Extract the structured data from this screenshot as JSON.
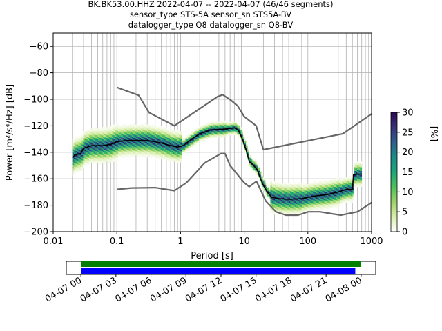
{
  "chart_data": [
    {
      "type": "heatmap",
      "title": [
        "BK.BK53.00.HHZ   2022-04-07 -- 2022-04-07  (46/46 segments)",
        "sensor_type STS-5A sensor_sn STS5A-BV",
        "datalogger_type Q8 datalogger_sn Q8-BV"
      ],
      "xlabel": "Period [s]",
      "ylabel": "Power [m²/s⁴/Hz] [dB]",
      "xscale": "log",
      "xlim": [
        0.01,
        1000
      ],
      "ylim": [
        -200,
        -50
      ],
      "grid": true,
      "x_ticks": [
        {
          "v": 0.01,
          "label": "0.01"
        },
        {
          "v": 0.1,
          "label": "0.1"
        },
        {
          "v": 1,
          "label": "1"
        },
        {
          "v": 10,
          "label": "10"
        },
        {
          "v": 100,
          "label": "100"
        },
        {
          "v": 1000,
          "label": "1000"
        }
      ],
      "y_ticks": [
        {
          "v": -60,
          "label": "−60"
        },
        {
          "v": -80,
          "label": "−80"
        },
        {
          "v": -100,
          "label": "−100"
        },
        {
          "v": -120,
          "label": "−120"
        },
        {
          "v": -140,
          "label": "−140"
        },
        {
          "v": -160,
          "label": "−160"
        },
        {
          "v": -180,
          "label": "−180"
        },
        {
          "v": -200,
          "label": "−200"
        }
      ],
      "colorbar": {
        "label": "[%]",
        "range": [
          0,
          30
        ],
        "ticks": [
          {
            "v": 0,
            "label": "0"
          },
          {
            "v": 5,
            "label": "5"
          },
          {
            "v": 10,
            "label": "10"
          },
          {
            "v": 15,
            "label": "15"
          },
          {
            "v": 20,
            "label": "20"
          },
          {
            "v": 25,
            "label": "25"
          },
          {
            "v": 30,
            "label": "30"
          }
        ],
        "colors": [
          "#ffffff",
          "#d8eeaa",
          "#9ed267",
          "#4cc35a",
          "#1ba77a",
          "#1c8b8a",
          "#2f5f8e",
          "#38327a",
          "#2a0b4f"
        ]
      },
      "series": [
        {
          "role": "median",
          "color": "#000000",
          "points": [
            [
              0.02,
              -144
            ],
            [
              0.022,
              -142
            ],
            [
              0.027,
              -141
            ],
            [
              0.03,
              -137
            ],
            [
              0.04,
              -135
            ],
            [
              0.06,
              -135
            ],
            [
              0.08,
              -134
            ],
            [
              0.1,
              -132
            ],
            [
              0.15,
              -131
            ],
            [
              0.3,
              -131
            ],
            [
              0.5,
              -133
            ],
            [
              0.7,
              -135
            ],
            [
              0.9,
              -136
            ],
            [
              1.1,
              -135
            ],
            [
              1.5,
              -130
            ],
            [
              2,
              -126
            ],
            [
              3,
              -123
            ],
            [
              5,
              -122.5
            ],
            [
              7,
              -121.5
            ],
            [
              8,
              -123
            ],
            [
              9,
              -128
            ],
            [
              10,
              -134
            ],
            [
              11,
              -140
            ],
            [
              12,
              -147
            ],
            [
              14,
              -150
            ],
            [
              16,
              -153
            ],
            [
              18,
              -160
            ],
            [
              20,
              -165
            ],
            [
              23,
              -170
            ],
            [
              27,
              -174
            ],
            [
              35,
              -175
            ],
            [
              50,
              -175.5
            ],
            [
              80,
              -175
            ],
            [
              100,
              -174
            ],
            [
              130,
              -173
            ],
            [
              200,
              -172
            ],
            [
              300,
              -170
            ],
            [
              400,
              -168
            ],
            [
              500,
              -168
            ],
            [
              520,
              -157
            ],
            [
              600,
              -156.5
            ],
            [
              700,
              -156.5
            ]
          ]
        },
        {
          "role": "new-high-noise-model",
          "color": "#666666",
          "points": [
            [
              0.1,
              -91
            ],
            [
              0.22,
              -97
            ],
            [
              0.32,
              -110
            ],
            [
              0.8,
              -120
            ],
            [
              3.8,
              -98
            ],
            [
              4.6,
              -96.5
            ],
            [
              6.3,
              -101
            ],
            [
              7.9,
              -105
            ],
            [
              10,
              -113
            ],
            [
              15.4,
              -120
            ],
            [
              20,
              -138
            ],
            [
              354.8,
              -126
            ],
            [
              1000,
              -111
            ]
          ]
        },
        {
          "role": "new-low-noise-model",
          "color": "#666666",
          "points": [
            [
              0.1,
              -168
            ],
            [
              0.17,
              -167
            ],
            [
              0.4,
              -166.7
            ],
            [
              0.8,
              -169
            ],
            [
              1.24,
              -163
            ],
            [
              2.4,
              -148
            ],
            [
              4.3,
              -141
            ],
            [
              5,
              -141
            ],
            [
              6,
              -150
            ],
            [
              10,
              -163
            ],
            [
              12,
              -166
            ],
            [
              15.6,
              -162
            ],
            [
              21.9,
              -177
            ],
            [
              31.6,
              -185
            ],
            [
              45,
              -187.5
            ],
            [
              70,
              -187.5
            ],
            [
              101,
              -185
            ],
            [
              154,
              -185
            ],
            [
              328,
              -187.5
            ],
            [
              600,
              -185
            ],
            [
              1000,
              -178
            ]
          ]
        }
      ]
    },
    {
      "type": "timeline",
      "x_ticks": [
        "04-07 00",
        "04-07 03",
        "04-07 06",
        "04-07 09",
        "04-07 12",
        "04-07 15",
        "04-07 18",
        "04-07 21",
        "04-08 00"
      ],
      "range_hours": [
        -1.25,
        25.25
      ],
      "bars": [
        {
          "name": "data",
          "color": "#008000",
          "start_hour": 0,
          "end_hour": 24.0
        },
        {
          "name": "segments",
          "color": "#0000ff",
          "start_hour": 0,
          "end_hour": 23.5
        }
      ]
    }
  ]
}
